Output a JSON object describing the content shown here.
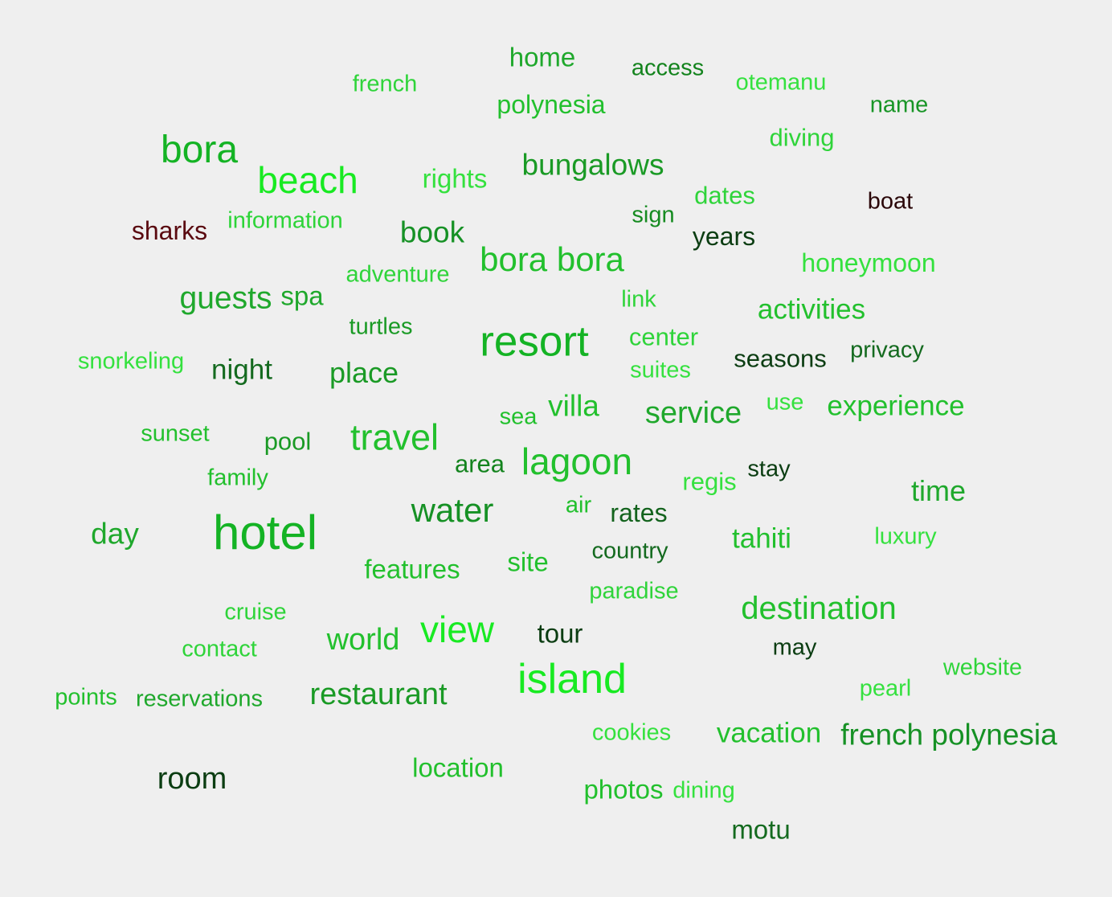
{
  "words": [
    {
      "text": "home",
      "color": "#1fa82c"
    },
    {
      "text": "access",
      "color": "#13831d"
    },
    {
      "text": "french",
      "color": "#2fd43a"
    },
    {
      "text": "otemanu",
      "color": "#35e13f"
    },
    {
      "text": "polynesia",
      "color": "#22c02d"
    },
    {
      "text": "name",
      "color": "#189526"
    },
    {
      "text": "diving",
      "color": "#2fd43a"
    },
    {
      "text": "bora",
      "color": "#14b324"
    },
    {
      "text": "beach",
      "color": "#18ea22"
    },
    {
      "text": "rights",
      "color": "#34e13e"
    },
    {
      "text": "bungalows",
      "color": "#1a9a25"
    },
    {
      "text": "dates",
      "color": "#2fd43a"
    },
    {
      "text": "boat",
      "color": "#2a0608"
    },
    {
      "text": "sign",
      "color": "#168b21"
    },
    {
      "text": "information",
      "color": "#2dd438"
    },
    {
      "text": "sharks",
      "color": "#5a0a10"
    },
    {
      "text": "book",
      "color": "#169125"
    },
    {
      "text": "years",
      "color": "#0b3d12"
    },
    {
      "text": "bora bora",
      "color": "#22c02d"
    },
    {
      "text": "honeymoon",
      "color": "#34e13e"
    },
    {
      "text": "adventure",
      "color": "#2fd43a"
    },
    {
      "text": "guests",
      "color": "#1fa82c"
    },
    {
      "text": "spa",
      "color": "#1fa82c"
    },
    {
      "text": "link",
      "color": "#2fd43a"
    },
    {
      "text": "activities",
      "color": "#22c02d"
    },
    {
      "text": "turtles",
      "color": "#1a9a25"
    },
    {
      "text": "resort",
      "color": "#14b324"
    },
    {
      "text": "center",
      "color": "#2fd43a"
    },
    {
      "text": "seasons",
      "color": "#0b3d12"
    },
    {
      "text": "privacy",
      "color": "#146a1f"
    },
    {
      "text": "snorkeling",
      "color": "#34e13e"
    },
    {
      "text": "night",
      "color": "#146a1f"
    },
    {
      "text": "place",
      "color": "#1a9a25"
    },
    {
      "text": "suites",
      "color": "#35e13f"
    },
    {
      "text": "villa",
      "color": "#22c02d"
    },
    {
      "text": "use",
      "color": "#35e13f"
    },
    {
      "text": "experience",
      "color": "#22c02d"
    },
    {
      "text": "sea",
      "color": "#22c02d"
    },
    {
      "text": "service",
      "color": "#1fa82c"
    },
    {
      "text": "sunset",
      "color": "#22c02d"
    },
    {
      "text": "pool",
      "color": "#1a9a25"
    },
    {
      "text": "travel",
      "color": "#22c02d"
    },
    {
      "text": "area",
      "color": "#13831d"
    },
    {
      "text": "lagoon",
      "color": "#22c02d"
    },
    {
      "text": "family",
      "color": "#22c02d"
    },
    {
      "text": "regis",
      "color": "#35e13f"
    },
    {
      "text": "stay",
      "color": "#0b3d12"
    },
    {
      "text": "time",
      "color": "#1fa82c"
    },
    {
      "text": "water",
      "color": "#169125"
    },
    {
      "text": "air",
      "color": "#22c02d"
    },
    {
      "text": "rates",
      "color": "#13631d"
    },
    {
      "text": "day",
      "color": "#1fa82c"
    },
    {
      "text": "hotel",
      "color": "#14b324"
    },
    {
      "text": "tahiti",
      "color": "#22c02d"
    },
    {
      "text": "luxury",
      "color": "#35e13f"
    },
    {
      "text": "country",
      "color": "#146a1f"
    },
    {
      "text": "site",
      "color": "#22c02d"
    },
    {
      "text": "features",
      "color": "#22c02d"
    },
    {
      "text": "paradise",
      "color": "#2fd43a"
    },
    {
      "text": "destination",
      "color": "#22c02d"
    },
    {
      "text": "cruise",
      "color": "#2fd43a"
    },
    {
      "text": "view",
      "color": "#18ea22"
    },
    {
      "text": "tour",
      "color": "#0b3d12"
    },
    {
      "text": "world",
      "color": "#22c02d"
    },
    {
      "text": "contact",
      "color": "#2fd43a"
    },
    {
      "text": "may",
      "color": "#0b3d12"
    },
    {
      "text": "website",
      "color": "#2fd43a"
    },
    {
      "text": "island",
      "color": "#18ea22"
    },
    {
      "text": "pearl",
      "color": "#35e13f"
    },
    {
      "text": "points",
      "color": "#22c02d"
    },
    {
      "text": "reservations",
      "color": "#1fa82c"
    },
    {
      "text": "restaurant",
      "color": "#1a9a25"
    },
    {
      "text": "cookies",
      "color": "#34e13e"
    },
    {
      "text": "vacation",
      "color": "#22c02d"
    },
    {
      "text": "french polynesia",
      "color": "#169125"
    },
    {
      "text": "room",
      "color": "#0b3d12"
    },
    {
      "text": "location",
      "color": "#22c02d"
    },
    {
      "text": "photos",
      "color": "#22c02d"
    },
    {
      "text": "dining",
      "color": "#34e13e"
    },
    {
      "text": "motu",
      "color": "#146a1f"
    }
  ]
}
